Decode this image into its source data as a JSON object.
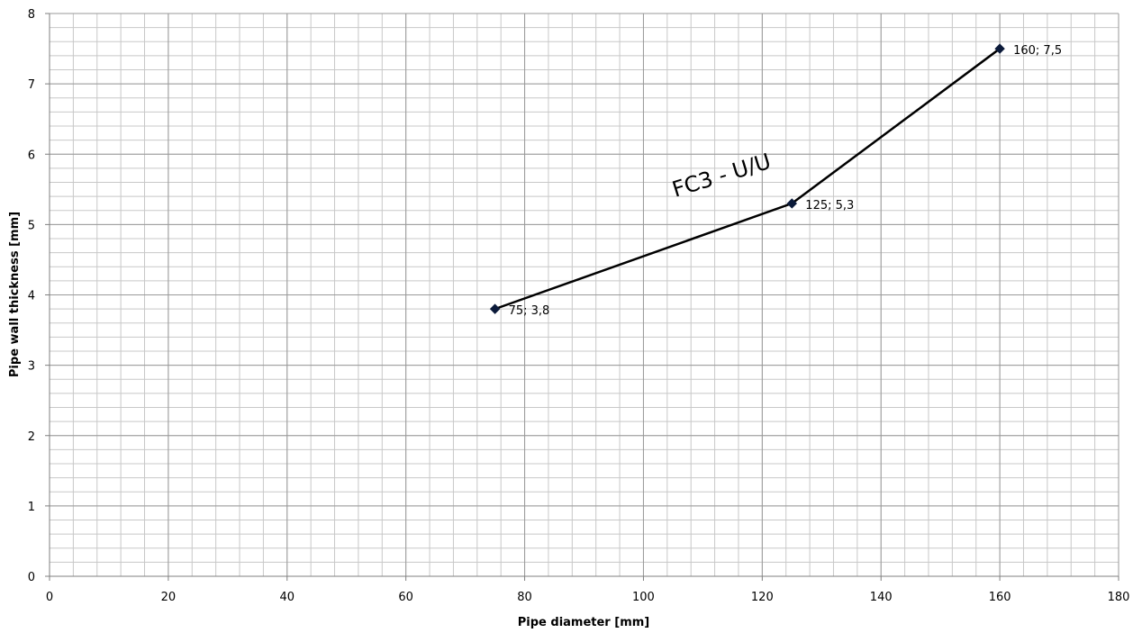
{
  "chart_data": {
    "type": "line",
    "title": "",
    "xlabel": "Pipe diameter  [mm]",
    "ylabel": "Pipe wall thickness [mm]",
    "xlim": [
      0,
      180
    ],
    "ylim": [
      0,
      8
    ],
    "x_major_ticks": [
      0,
      20,
      40,
      60,
      80,
      100,
      120,
      140,
      160,
      180
    ],
    "y_major_ticks": [
      0,
      1,
      2,
      3,
      4,
      5,
      6,
      7,
      8
    ],
    "x_tick_labels": [
      "0",
      "20",
      "40",
      "60",
      "80",
      "100",
      "120",
      "140",
      "160",
      "180"
    ],
    "y_tick_labels": [
      "0",
      "1",
      "2",
      "3",
      "4",
      "5",
      "6",
      "7",
      "8"
    ],
    "x_minor_step": 4,
    "y_minor_step": 0.2,
    "grid": true,
    "series": [
      {
        "color": "#000000",
        "marker_color": "#0b1a3a",
        "points": [
          {
            "x": 75,
            "y": 3.8,
            "label": "75; 3,8"
          },
          {
            "x": 125,
            "y": 5.3,
            "label": "125; 5,3"
          },
          {
            "x": 160,
            "y": 7.5,
            "label": "160; 7,5"
          }
        ]
      }
    ],
    "annotation": {
      "text": "FC3 - U/U",
      "x": 113.5,
      "y": 5.6
    }
  }
}
